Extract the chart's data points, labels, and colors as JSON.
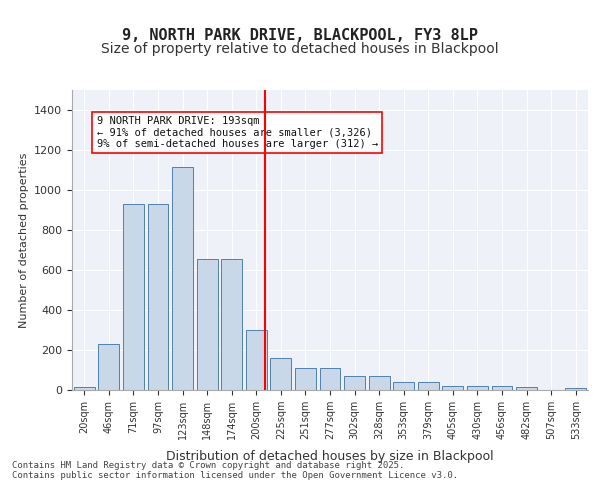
{
  "title_line1": "9, NORTH PARK DRIVE, BLACKPOOL, FY3 8LP",
  "title_line2": "Size of property relative to detached houses in Blackpool",
  "xlabel": "Distribution of detached houses by size in Blackpool",
  "ylabel": "Number of detached properties",
  "categories": [
    "20sqm",
    "46sqm",
    "71sqm",
    "97sqm",
    "123sqm",
    "148sqm",
    "174sqm",
    "200sqm",
    "225sqm",
    "251sqm",
    "277sqm",
    "302sqm",
    "328sqm",
    "353sqm",
    "379sqm",
    "405sqm",
    "430sqm",
    "456sqm",
    "482sqm",
    "507sqm",
    "533sqm"
  ],
  "bar_values": [
    15,
    228,
    930,
    930,
    1115,
    655,
    655,
    300,
    160,
    108,
    108,
    68,
    68,
    38,
    38,
    22,
    22,
    22,
    15,
    0,
    8
  ],
  "bar_color": "#c8d8e8",
  "bar_edge_color": "#5080b0",
  "background_color": "#eef2f8",
  "vline_x": 7.35,
  "vline_color": "red",
  "annotation_text": "9 NORTH PARK DRIVE: 193sqm\n← 91% of detached houses are smaller (3,326)\n9% of semi-detached houses are larger (312) →",
  "annotation_box_color": "white",
  "annotation_box_edge": "red",
  "footnote": "Contains HM Land Registry data © Crown copyright and database right 2025.\nContains public sector information licensed under the Open Government Licence v3.0.",
  "ylim": [
    0,
    1500
  ],
  "yticks": [
    0,
    200,
    400,
    600,
    800,
    1000,
    1200,
    1400
  ],
  "title_fontsize": 11,
  "subtitle_fontsize": 10
}
